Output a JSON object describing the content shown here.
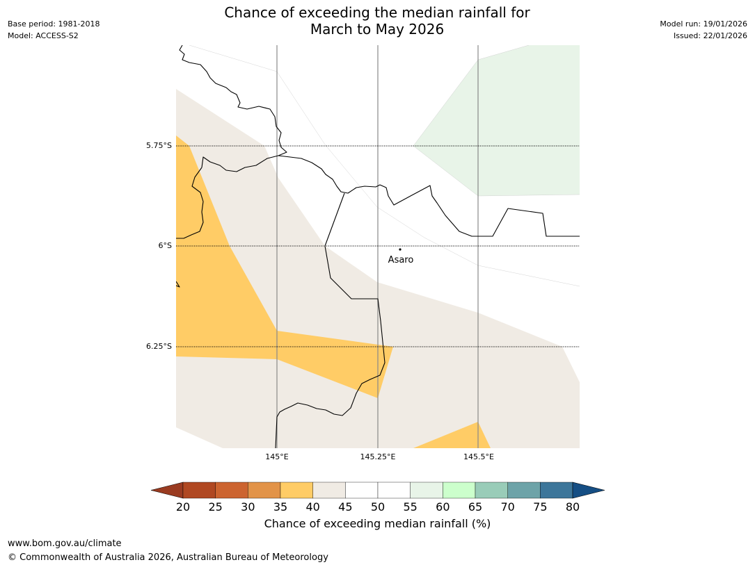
{
  "header": {
    "title_line1": "Chance of exceeding the median rainfall for",
    "title_line2": "March to May 2026",
    "base_period": "Base period: 1981-2018",
    "model": "Model: ACCESS-S2",
    "model_run": "Model run: 19/01/2026",
    "issued": "Issued: 22/01/2026"
  },
  "map": {
    "lat_labels": [
      "5.75°S",
      "6°S",
      "6.25°S"
    ],
    "lon_labels": [
      "145°E",
      "145.25°E",
      "145.5°E"
    ],
    "place_label": "Asaro",
    "colors": {
      "c35_40": "#ffcc66",
      "c40_45": "#f0ebe4",
      "c45_55": "#ffffff",
      "c55_60": "#e8f4e8",
      "border": "#000000",
      "gridline": "#888888"
    }
  },
  "colorbar": {
    "ticks": [
      "20",
      "25",
      "30",
      "35",
      "40",
      "45",
      "50",
      "55",
      "60",
      "65",
      "70",
      "75",
      "80"
    ],
    "colors": [
      "#9a3b21",
      "#b04822",
      "#cc6430",
      "#e29348",
      "#ffcc66",
      "#f0ebe4",
      "#ffffff",
      "#ffffff",
      "#e8f4e8",
      "#ccffcc",
      "#99ccb8",
      "#6da3a8",
      "#3d769a",
      "#154e84"
    ],
    "title": "Chance of exceeding median rainfall (%)"
  },
  "footer": {
    "url": "www.bom.gov.au/climate",
    "copyright": "© Commonwealth of Australia 2026, Australian Bureau of Meteorology"
  }
}
